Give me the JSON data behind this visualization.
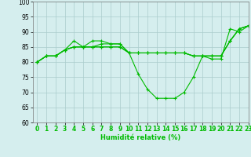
{
  "xlabel": "Humidité relative (%)",
  "ylabel": "",
  "background_color": "#d5eeee",
  "grid_color": "#aacccc",
  "line_color": "#00bb00",
  "xlim": [
    -0.5,
    23
  ],
  "ylim": [
    60,
    100
  ],
  "yticks": [
    60,
    65,
    70,
    75,
    80,
    85,
    90,
    95,
    100
  ],
  "xticks": [
    0,
    1,
    2,
    3,
    4,
    5,
    6,
    7,
    8,
    9,
    10,
    11,
    12,
    13,
    14,
    15,
    16,
    17,
    18,
    19,
    20,
    21,
    22,
    23
  ],
  "series": [
    [
      80,
      82,
      82,
      84,
      87,
      85,
      87,
      87,
      86,
      86,
      83,
      83,
      83,
      83,
      83,
      83,
      83,
      82,
      82,
      81,
      81,
      91,
      90,
      92
    ],
    [
      80,
      82,
      82,
      84,
      85,
      85,
      85,
      86,
      86,
      86,
      83,
      83,
      83,
      83,
      83,
      83,
      83,
      82,
      82,
      82,
      82,
      87,
      91,
      92
    ],
    [
      80,
      82,
      82,
      84,
      85,
      85,
      85,
      85,
      85,
      85,
      83,
      83,
      83,
      83,
      83,
      83,
      83,
      82,
      82,
      82,
      82,
      87,
      91,
      92
    ],
    [
      80,
      82,
      82,
      84,
      85,
      85,
      85,
      85,
      85,
      85,
      83,
      76,
      71,
      68,
      68,
      68,
      70,
      75,
      82,
      82,
      82,
      87,
      91,
      92
    ]
  ]
}
